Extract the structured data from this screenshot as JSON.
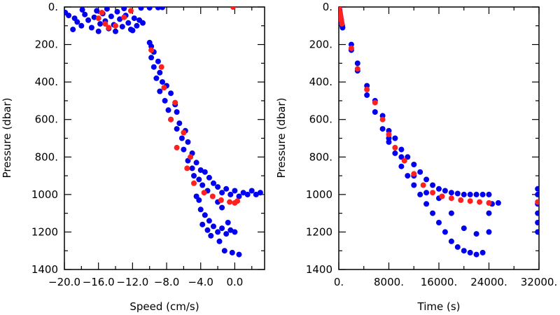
{
  "colors": {
    "blue": "#0000ee",
    "red": "#ff2020",
    "frame": "#000000"
  },
  "chart_data": [
    {
      "type": "scatter",
      "title": "",
      "xlabel": "Speed (cm/s)",
      "ylabel": "Pressure (dbar)",
      "xlim": [
        -20.0,
        3.5
      ],
      "ylim": [
        1400,
        0
      ],
      "xticks": [
        -20.0,
        -16.0,
        -12.0,
        -8.0,
        -4.0,
        0.0
      ],
      "xtick_labels": [
        "−20.0",
        "−16.0",
        "−12.0",
        "−8.0",
        "−4.0",
        "0.0"
      ],
      "yticks": [
        0,
        200,
        400,
        600,
        800,
        1000,
        1200,
        1400
      ],
      "ytick_labels": [
        "0.",
        "200.",
        "400.",
        "600.",
        "800.",
        "1000",
        "1200",
        "1400"
      ],
      "grid": false,
      "legend": "none",
      "series": [
        {
          "color": "blue",
          "points": [
            [
              -19.9,
              30
            ],
            [
              -19.5,
              45
            ],
            [
              -18.8,
              60
            ],
            [
              -18.5,
              80
            ],
            [
              -18.0,
              100
            ],
            [
              -17.6,
              40
            ],
            [
              -17.2,
              70
            ],
            [
              -16.8,
              110
            ],
            [
              -16.5,
              55
            ],
            [
              -16.2,
              20
            ],
            [
              -15.8,
              90
            ],
            [
              -15.5,
              35
            ],
            [
              -15.2,
              75
            ],
            [
              -14.8,
              115
            ],
            [
              -14.5,
              50
            ],
            [
              -14.2,
              95
            ],
            [
              -13.8,
              25
            ],
            [
              -13.5,
              65
            ],
            [
              -13.2,
              105
            ],
            [
              -12.8,
              45
            ],
            [
              -12.5,
              85
            ],
            [
              -12.2,
              120
            ],
            [
              -11.8,
              60
            ],
            [
              -11.5,
              100
            ],
            [
              -11.2,
              70
            ],
            [
              -19.0,
              120
            ],
            [
              -17.9,
              15
            ],
            [
              -16.0,
              130
            ],
            [
              -14.0,
              130
            ],
            [
              -12.0,
              125
            ],
            [
              -10.8,
              85
            ],
            [
              -15.0,
              10
            ],
            [
              -13.0,
              8
            ],
            [
              -11.0,
              5
            ],
            [
              -10.0,
              4
            ],
            [
              -9.0,
              3
            ],
            [
              -8.5,
              2
            ],
            [
              -10.0,
              190
            ],
            [
              -9.8,
              210
            ],
            [
              -9.5,
              240
            ],
            [
              -9.8,
              270
            ],
            [
              -9.0,
              290
            ],
            [
              -9.5,
              320
            ],
            [
              -8.8,
              350
            ],
            [
              -9.2,
              380
            ],
            [
              -8.5,
              400
            ],
            [
              -8.0,
              420
            ],
            [
              -8.8,
              450
            ],
            [
              -7.5,
              460
            ],
            [
              -8.2,
              500
            ],
            [
              -7.0,
              520
            ],
            [
              -7.8,
              550
            ],
            [
              -6.8,
              560
            ],
            [
              -7.5,
              600
            ],
            [
              -6.5,
              620
            ],
            [
              -6.8,
              650
            ],
            [
              -5.8,
              660
            ],
            [
              -6.2,
              700
            ],
            [
              -5.5,
              720
            ],
            [
              -6.0,
              760
            ],
            [
              -5.0,
              780
            ],
            [
              -5.5,
              820
            ],
            [
              -4.5,
              830
            ],
            [
              -5.0,
              860
            ],
            [
              -4.0,
              870
            ],
            [
              -4.8,
              900
            ],
            [
              -3.5,
              880
            ],
            [
              -4.2,
              920
            ],
            [
              -3.0,
              910
            ],
            [
              -3.8,
              950
            ],
            [
              -2.5,
              940
            ],
            [
              -3.2,
              980
            ],
            [
              -2.0,
              960
            ],
            [
              -1.5,
              990
            ],
            [
              -1.0,
              970
            ],
            [
              -0.5,
              1000
            ],
            [
              0.0,
              980
            ],
            [
              0.5,
              1010
            ],
            [
              1.0,
              990
            ],
            [
              1.5,
              1000
            ],
            [
              2.0,
              980
            ],
            [
              2.5,
              1000
            ],
            [
              3.0,
              990
            ],
            [
              -4.2,
              1030
            ],
            [
              -4.0,
              1080
            ],
            [
              -3.5,
              1110
            ],
            [
              -3.8,
              1160
            ],
            [
              -3.0,
              1140
            ],
            [
              -3.2,
              1190
            ],
            [
              -2.5,
              1170
            ],
            [
              -2.8,
              1220
            ],
            [
              -2.0,
              1200
            ],
            [
              -1.5,
              1180
            ],
            [
              -1.0,
              1210
            ],
            [
              -0.5,
              1190
            ],
            [
              0.0,
              1200
            ],
            [
              -0.8,
              1150
            ],
            [
              -1.8,
              1250
            ],
            [
              -1.2,
              1300
            ],
            [
              0.5,
              1320
            ],
            [
              -0.3,
              1310
            ],
            [
              -4.5,
              1010
            ],
            [
              -2.0,
              1040
            ],
            [
              -1.5,
              1070
            ]
          ]
        },
        {
          "color": "red",
          "points": [
            [
              -15.6,
              30
            ],
            [
              -16.0,
              60
            ],
            [
              -15.2,
              90
            ],
            [
              -14.8,
              110
            ],
            [
              -14.0,
              100
            ],
            [
              -13.0,
              55
            ],
            [
              -12.2,
              20
            ],
            [
              -0.2,
              0
            ],
            [
              -9.8,
              230
            ],
            [
              -8.6,
              320
            ],
            [
              -8.3,
              430
            ],
            [
              -7.0,
              510
            ],
            [
              -7.5,
              600
            ],
            [
              -6.0,
              670
            ],
            [
              -6.8,
              750
            ],
            [
              -5.2,
              800
            ],
            [
              -5.6,
              860
            ],
            [
              -4.8,
              940
            ],
            [
              -3.6,
              990
            ],
            [
              -2.6,
              1010
            ],
            [
              -1.6,
              1030
            ],
            [
              -0.6,
              1040
            ],
            [
              0.0,
              1045
            ],
            [
              0.3,
              1035
            ]
          ]
        }
      ]
    },
    {
      "type": "scatter",
      "title": "",
      "xlabel": "Time (s)",
      "ylabel": "Pressure (dbar)",
      "xlim": [
        0,
        32000
      ],
      "ylim": [
        1400,
        0
      ],
      "xticks": [
        0,
        8000,
        16000,
        24000,
        32000
      ],
      "xtick_labels": [
        "0.",
        "8000.",
        "16000.",
        "24000.",
        "32000."
      ],
      "yticks": [
        0,
        200,
        400,
        600,
        800,
        1000,
        1200,
        1400
      ],
      "ytick_labels": [
        "0.",
        "200.",
        "400.",
        "600.",
        "800.",
        "1000",
        "1200",
        "1400"
      ],
      "grid": false,
      "legend": "none",
      "series": [
        {
          "color": "blue",
          "points": [
            [
              50,
              0
            ],
            [
              100,
              10
            ],
            [
              150,
              20
            ],
            [
              200,
              35
            ],
            [
              250,
              45
            ],
            [
              300,
              55
            ],
            [
              350,
              65
            ],
            [
              400,
              75
            ],
            [
              450,
              85
            ],
            [
              500,
              95
            ],
            [
              550,
              100
            ],
            [
              600,
              110
            ],
            [
              2000,
              200
            ],
            [
              2000,
              230
            ],
            [
              3000,
              300
            ],
            [
              3000,
              340
            ],
            [
              4500,
              420
            ],
            [
              4500,
              470
            ],
            [
              5800,
              500
            ],
            [
              5800,
              560
            ],
            [
              7000,
              580
            ],
            [
              7000,
              650
            ],
            [
              8000,
              660
            ],
            [
              8000,
              720
            ],
            [
              9000,
              700
            ],
            [
              9000,
              780
            ],
            [
              10000,
              760
            ],
            [
              10000,
              850
            ],
            [
              11000,
              800
            ],
            [
              11000,
              900
            ],
            [
              12000,
              840
            ],
            [
              12000,
              950
            ],
            [
              13000,
              880
            ],
            [
              13000,
              1000
            ],
            [
              14000,
              920
            ],
            [
              14000,
              1050
            ],
            [
              15000,
              950
            ],
            [
              15000,
              1100
            ],
            [
              16000,
              970
            ],
            [
              16000,
              1150
            ],
            [
              17000,
              980
            ],
            [
              17000,
              1200
            ],
            [
              18000,
              990
            ],
            [
              18000,
              1250
            ],
            [
              19000,
              995
            ],
            [
              19000,
              1280
            ],
            [
              20000,
              1000
            ],
            [
              20000,
              1300
            ],
            [
              21000,
              1000
            ],
            [
              21000,
              1310
            ],
            [
              22000,
              1000
            ],
            [
              22000,
              1320
            ],
            [
              23000,
              1000
            ],
            [
              23000,
              1310
            ],
            [
              24000,
              1000
            ],
            [
              24000,
              1200
            ],
            [
              24500,
              1050
            ],
            [
              25500,
              1045
            ],
            [
              16000,
              1020
            ],
            [
              18000,
              1100
            ],
            [
              20000,
              1180
            ],
            [
              22000,
              1210
            ],
            [
              24000,
              1100
            ],
            [
              14000,
              990
            ],
            [
              12000,
              900
            ],
            [
              10000,
              800
            ],
            [
              8000,
              700
            ],
            [
              31800,
              970
            ],
            [
              31800,
              1000
            ],
            [
              31800,
              1050
            ],
            [
              31800,
              1100
            ],
            [
              31800,
              1150
            ],
            [
              31800,
              1200
            ]
          ]
        },
        {
          "color": "red",
          "points": [
            [
              100,
              10
            ],
            [
              200,
              30
            ],
            [
              300,
              50
            ],
            [
              400,
              70
            ],
            [
              500,
              90
            ],
            [
              2000,
              220
            ],
            [
              3000,
              330
            ],
            [
              4500,
              440
            ],
            [
              5800,
              510
            ],
            [
              7000,
              600
            ],
            [
              8000,
              680
            ],
            [
              9000,
              750
            ],
            [
              10500,
              820
            ],
            [
              12000,
              890
            ],
            [
              13500,
              950
            ],
            [
              15000,
              990
            ],
            [
              16500,
              1010
            ],
            [
              18000,
              1020
            ],
            [
              19500,
              1030
            ],
            [
              21000,
              1035
            ],
            [
              22500,
              1040
            ],
            [
              24000,
              1045
            ],
            [
              31800,
              1040
            ]
          ]
        }
      ]
    }
  ]
}
